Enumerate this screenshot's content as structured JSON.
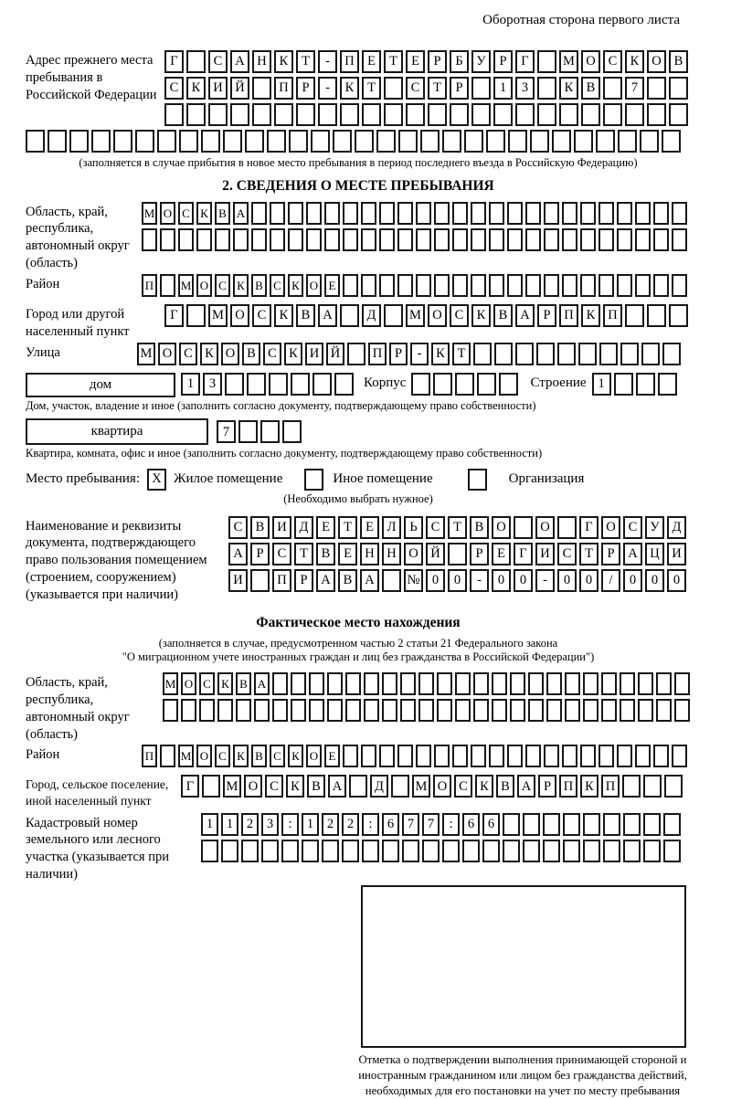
{
  "meta": {
    "title": "Оборотная сторона первого листа"
  },
  "prev_address": {
    "label": "Адрес прежнего места пребывания в Российской Федерации",
    "row1": "Г САНКТ-ПЕТЕРБУРГ МОСКОВ",
    "row2": "СКИЙ ПР-КТ СТР 13 КВ 7",
    "row3": "",
    "row4": "",
    "note": "(заполняется в случае прибытия в новое место пребывания в период последнего въезда в Российскую Федерацию)"
  },
  "section2": {
    "title": "2. СВЕДЕНИЯ О МЕСТЕ ПРЕБЫВАНИЯ",
    "region": {
      "label": "Область, край, республика, автономный округ (область)",
      "row1": "МОСКВА",
      "row2": ""
    },
    "district": {
      "label": "Район",
      "value": "П МОСКВСКОЕ"
    },
    "city": {
      "label": "Город или другой населенный пункт",
      "value": "Г МОСКВА Д МОСКВАРПКП"
    },
    "street": {
      "label": "Улица",
      "value": "МОСКОВСКИЙ ПР-КТ"
    },
    "house": {
      "box_label": "дом",
      "cells": "13",
      "korpus_label": "Корпус",
      "korpus_cells": "",
      "stroenie_label": "Строение",
      "stroenie_cells": "1",
      "note": "Дом, участок, владение и иное (заполнить согласно документу, подтверждающему право собственности)"
    },
    "apartment": {
      "box_label": "квартира",
      "cells": "7",
      "note": "Квартира, комната, офис и иное (заполнить согласно документу, подтверждающему право собственности)"
    },
    "stay_type": {
      "label": "Место пребывания:",
      "options": [
        {
          "label": "Жилое помещение",
          "checked": "X"
        },
        {
          "label": "Иное помещение",
          "checked": ""
        },
        {
          "label": "Организация",
          "checked": ""
        }
      ],
      "note": "(Необходимо выбрать нужное)"
    },
    "document": {
      "label": "Наименование и реквизиты документа, подтверждающего право пользования помещением (строением, сооружением) (указывается при наличии)",
      "row1": "СВИДЕТЕЛЬСТВО О ГОСУД",
      "row2": "АРСТВЕННОЙ РЕГИСТРАЦИ",
      "row3": "И ПРАВА №00-00-00/000"
    }
  },
  "fact_location": {
    "title": "Фактическое место нахождения",
    "note1": "(заполняется в случае, предусмотренном частью 2 статьи 21 Федерального закона",
    "note2": "\"О миграционном учете иностранных граждан и лиц без гражданства в Российской Федерации\")",
    "region": {
      "label": "Область, край, республика, автономный округ (область)",
      "row1": "МОСКВА",
      "row2": ""
    },
    "district": {
      "label": "Район",
      "value": "П МОСКВСКОЕ"
    },
    "city": {
      "label": "Город, сельское поселение, иной населенный пункт",
      "value": "Г МОСКВА Д МОСКВАРПКП"
    },
    "cadastral": {
      "label": "Кадастровый номер земельного или лесного участка (указывается при наличии)",
      "row1": "1123:122:677:66",
      "row2": ""
    },
    "stamp_note": "Отметка о подтверждении выполнения принимающей стороной и иностранным гражданином или лицом без гражданства действий, необходимых для его постановки на учет по месту пребывания"
  }
}
